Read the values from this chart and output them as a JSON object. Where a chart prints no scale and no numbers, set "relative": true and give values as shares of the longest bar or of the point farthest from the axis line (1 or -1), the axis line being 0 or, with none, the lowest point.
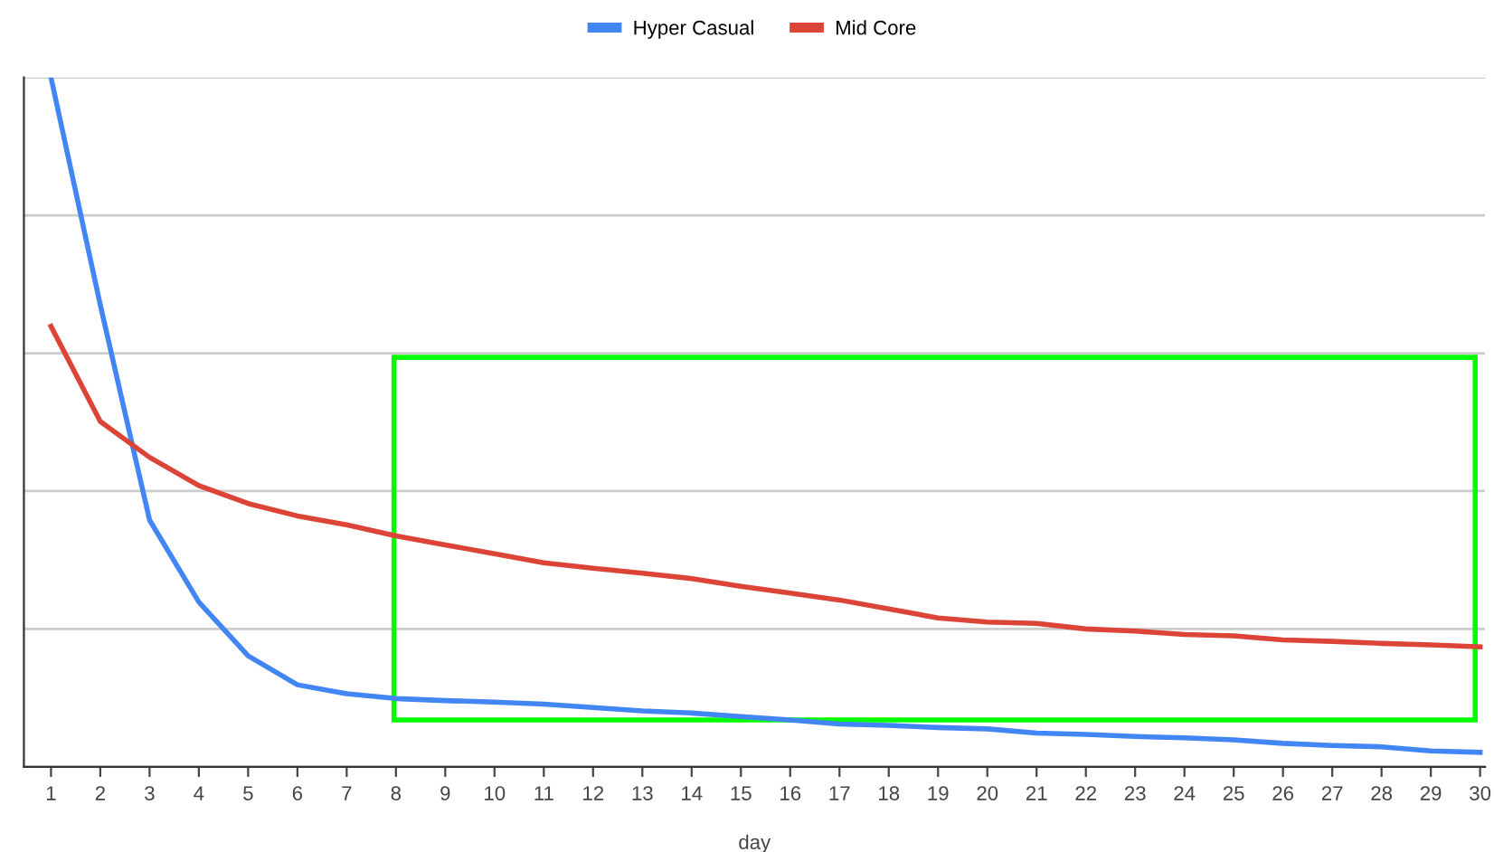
{
  "chart_data": {
    "type": "line",
    "relative": true,
    "xlabel": "day",
    "legend": "top",
    "grid": "y",
    "categories": [
      "1",
      "2",
      "3",
      "4",
      "5",
      "6",
      "7",
      "8",
      "9",
      "10",
      "11",
      "12",
      "13",
      "14",
      "15",
      "16",
      "17",
      "18",
      "19",
      "20",
      "21",
      "22",
      "23",
      "24",
      "25",
      "26",
      "27",
      "28",
      "29",
      "30"
    ],
    "series": [
      {
        "name": "Hyper Casual",
        "color": "#4285f4",
        "values": [
          1.0,
          0.67,
          0.358,
          0.239,
          0.161,
          0.119,
          0.106,
          0.099,
          0.096,
          0.094,
          0.091,
          0.086,
          0.081,
          0.078,
          0.073,
          0.068,
          0.062,
          0.06,
          0.057,
          0.055,
          0.049,
          0.047,
          0.044,
          0.042,
          0.039,
          0.034,
          0.031,
          0.029,
          0.023,
          0.021
        ]
      },
      {
        "name": "Mid Core",
        "color": "#db4437",
        "values": [
          0.639,
          0.501,
          0.449,
          0.408,
          0.382,
          0.364,
          0.351,
          0.335,
          0.322,
          0.309,
          0.296,
          0.288,
          0.281,
          0.273,
          0.262,
          0.252,
          0.242,
          0.229,
          0.216,
          0.21,
          0.208,
          0.2,
          0.197,
          0.192,
          0.19,
          0.184,
          0.182,
          0.179,
          0.177,
          0.174
        ]
      }
    ]
  }
}
